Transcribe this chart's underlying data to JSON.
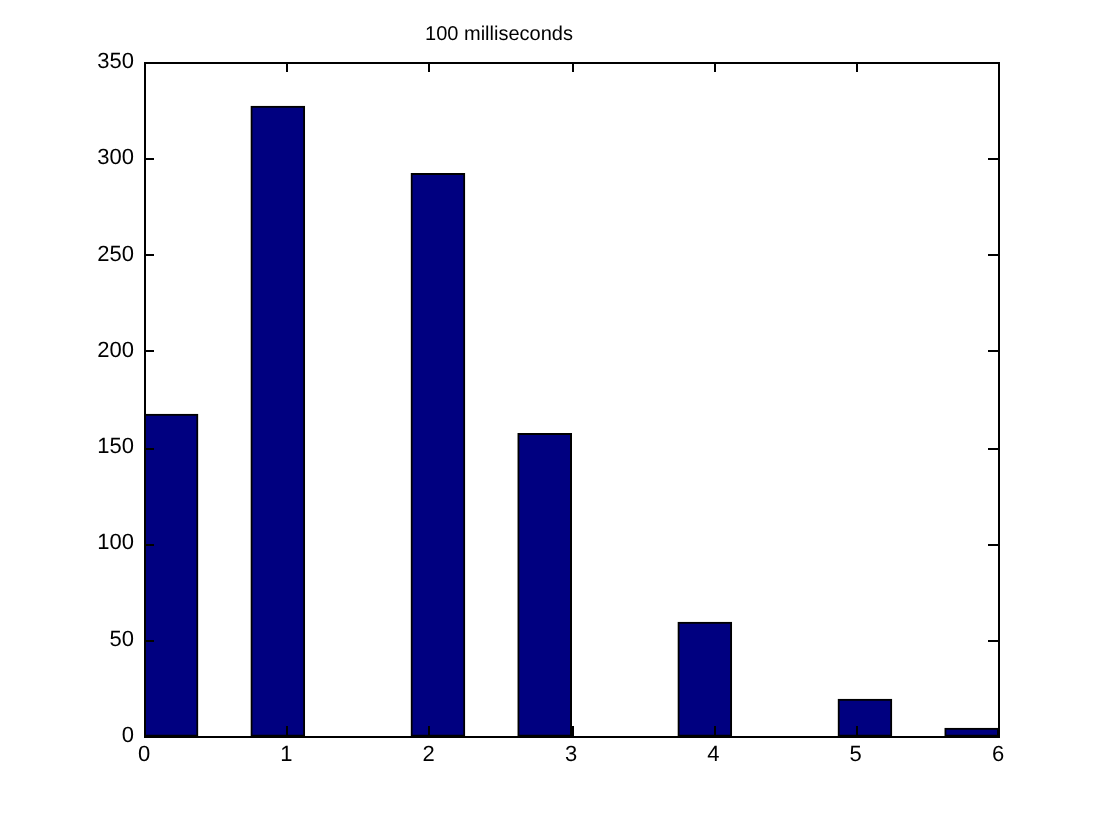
{
  "chart_data": {
    "type": "histogram",
    "title": "100 milliseconds",
    "bins": [
      0,
      0.38,
      0.75,
      1.13,
      1.5,
      1.88,
      2.25,
      2.63,
      3,
      3.38,
      3.75,
      4.13,
      4.5,
      4.88,
      5.25,
      5.63,
      6
    ],
    "values": [
      167,
      0,
      327,
      0,
      0,
      292,
      0,
      157,
      0,
      0,
      59,
      0,
      0,
      19,
      0,
      4
    ],
    "color": "#000080",
    "xlim": [
      0,
      6
    ],
    "ylim": [
      0,
      350
    ],
    "xticks": [
      0,
      1,
      2,
      3,
      4,
      5,
      6
    ],
    "yticks": [
      0,
      50,
      100,
      150,
      200,
      250,
      300,
      350
    ]
  }
}
